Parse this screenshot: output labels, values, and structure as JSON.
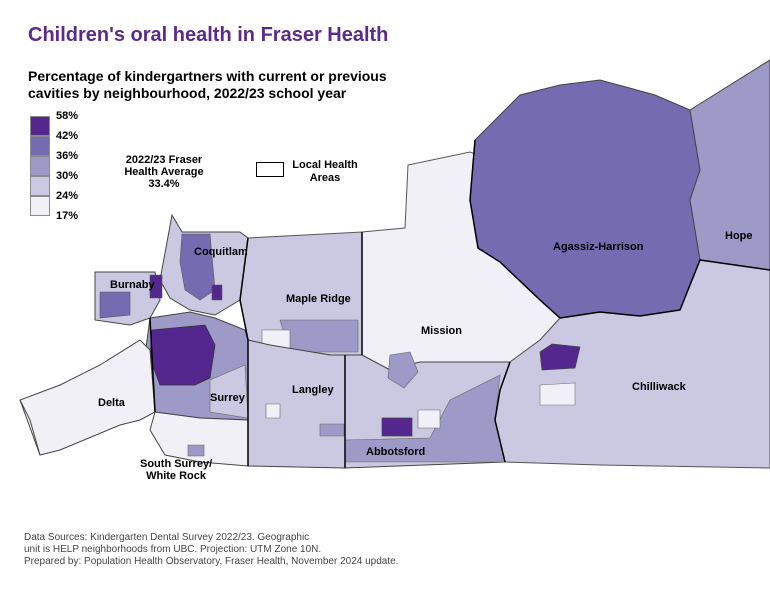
{
  "title": "Children's oral health in Fraser Health",
  "subtitle": "Percentage of kindergartners with current or previous cavities by neighbourhood, 2022/23 school year",
  "legend": {
    "breaks": [
      "58%",
      "42%",
      "36%",
      "30%",
      "24%",
      "17%"
    ],
    "colors": [
      "#54278f",
      "#756bb1",
      "#9e9ac8",
      "#cbc9e2",
      "#f2f0f7"
    ]
  },
  "average": {
    "line1": "2022/23 Fraser",
    "line2": "Health Average",
    "line3": "33.4%"
  },
  "lha_legend": {
    "line1": "Local Health",
    "line2": "Areas"
  },
  "areas": {
    "coquitlam": "Coquitlam",
    "burnaby": "Burnaby",
    "maple_ridge": "Maple Ridge",
    "mission": "Mission",
    "agassiz": "Agassiz-Harrison",
    "hope": "Hope",
    "langley": "Langley",
    "surrey": "Surrey",
    "delta": "Delta",
    "chilliwack": "Chilliwack",
    "abbotsford": "Abbotsford",
    "south_surrey_1": "South Surrey/",
    "south_surrey_2": "White Rock"
  },
  "sources": {
    "line1": "Data Sources: Kindergarten Dental Survey 2022/23. Geographic",
    "line2": "unit is HELP neighborhoods from UBC. Projection: UTM Zone 10N.",
    "line3": "Prepared by: Population Health Observatory, Fraser Health, November 2024 update."
  }
}
